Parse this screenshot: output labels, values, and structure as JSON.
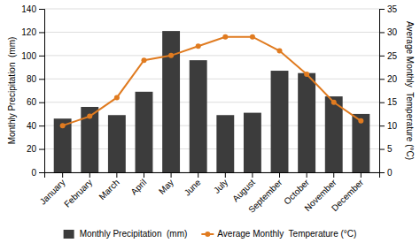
{
  "chart_data": {
    "type": "bar",
    "categories": [
      "January",
      "February",
      "March",
      "April",
      "May",
      "June",
      "July",
      "August",
      "September",
      "October",
      "November",
      "December"
    ],
    "series": [
      {
        "name": "Monthly Precipitation  (mm)",
        "type": "bar",
        "color": "#3c3c3c",
        "values": [
          46,
          56,
          49,
          69,
          121,
          96,
          49,
          51,
          87,
          85,
          65,
          50
        ]
      },
      {
        "name": "Average Monthly  Temperature (°C)",
        "type": "line",
        "axis": "y2",
        "color": "#e07b20",
        "marker": "circle",
        "values": [
          10,
          12,
          16,
          24,
          25,
          27,
          29,
          29,
          26,
          21,
          15,
          11
        ]
      }
    ],
    "ylabel": "Monthly Precipitation  (mm)",
    "y2label": "Average Monthly  Temperature (°C)",
    "ylim": [
      0,
      140
    ],
    "yticks": [
      0,
      20,
      40,
      60,
      80,
      100,
      120,
      140
    ],
    "y2lim": [
      0,
      35
    ],
    "y2ticks": [
      0,
      5,
      10,
      15,
      20,
      25,
      30,
      35
    ],
    "grid": true,
    "legend": "bottom"
  }
}
